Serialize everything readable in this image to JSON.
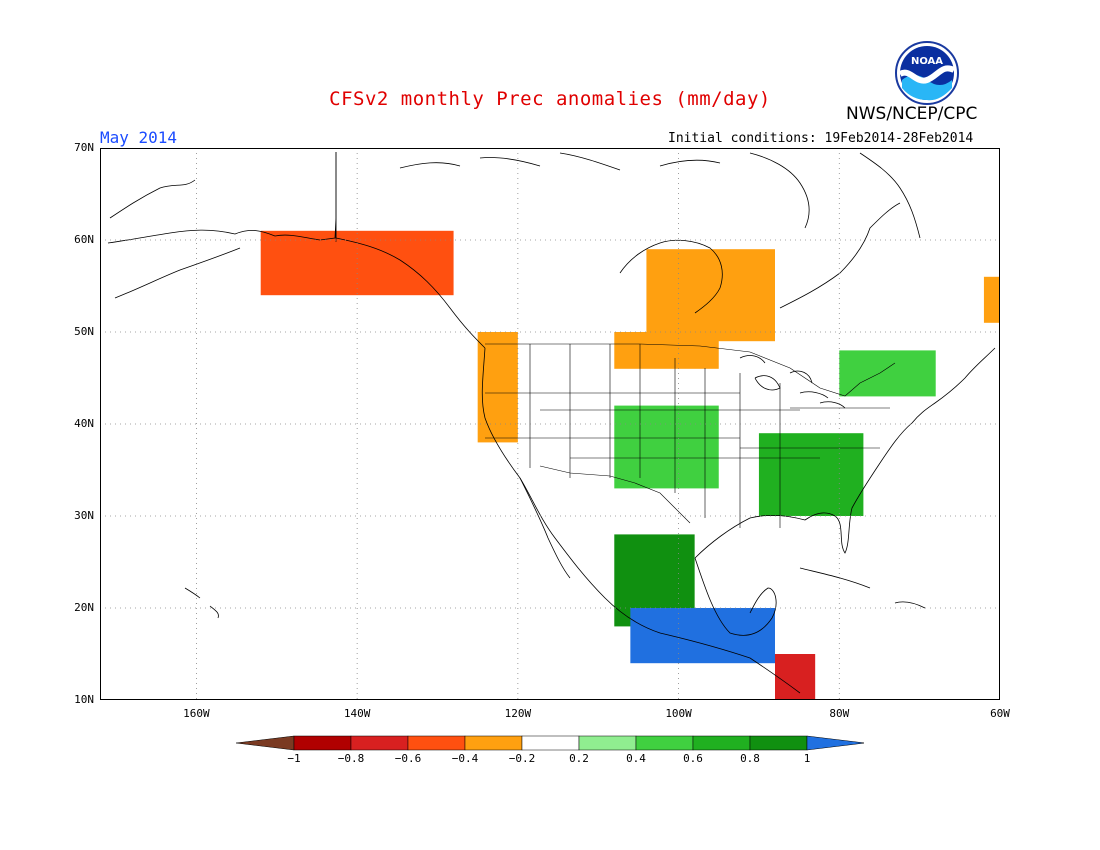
{
  "header": {
    "title": "CFSv2 monthly Prec anomalies (mm/day)",
    "period": "May 2014",
    "initial_conditions": "Initial conditions: 19Feb2014-28Feb2014",
    "agency": "NWS/NCEP/CPC",
    "logo_text": "NOAA"
  },
  "map": {
    "lat_labels": [
      "70N",
      "60N",
      "50N",
      "40N",
      "30N",
      "20N",
      "10N"
    ],
    "lon_labels": [
      "160W",
      "140W",
      "120W",
      "100W",
      "80W",
      "60W"
    ],
    "extent": {
      "lon": [
        -172,
        -60
      ],
      "lat": [
        10,
        70
      ]
    },
    "grid": "dotted every 20° lon / 10° lat"
  },
  "colorbar": {
    "labels": [
      "-1",
      "-0.8",
      "-0.6",
      "-0.4",
      "-0.2",
      "0.2",
      "0.4",
      "0.6",
      "0.8",
      "1"
    ],
    "colors": [
      "#7a3a22",
      "#b00000",
      "#d82020",
      "#ff5010",
      "#ffa010",
      "#ffffff",
      "#90ee90",
      "#40d040",
      "#20b020",
      "#109010",
      "#2070e0"
    ]
  },
  "anomaly_regions": [
    {
      "region": "central Canada (Manitoba/Ontario)",
      "lon": [
        -104,
        -88
      ],
      "lat": [
        49,
        59
      ],
      "level": "-0.4"
    },
    {
      "region": "northern Great Plains",
      "lon": [
        -108,
        -95
      ],
      "lat": [
        46,
        50
      ],
      "level": "-0.4"
    },
    {
      "region": "Pacific Northwest coast",
      "lon": [
        -125,
        -120
      ],
      "lat": [
        38,
        50
      ],
      "level": "-0.4"
    },
    {
      "region": "southern Alaska coast",
      "lon": [
        -152,
        -128
      ],
      "lat": [
        54,
        61
      ],
      "level": "-0.6"
    },
    {
      "region": "Labrador / Newfoundland",
      "lon": [
        -62,
        -60
      ],
      "lat": [
        51,
        56
      ],
      "level": "-0.4"
    },
    {
      "region": "central Plains",
      "lon": [
        -108,
        -95
      ],
      "lat": [
        33,
        42
      ],
      "level": "0.4"
    },
    {
      "region": "Southeast US / Carolinas",
      "lon": [
        -90,
        -77
      ],
      "lat": [
        30,
        39
      ],
      "level": "0.6"
    },
    {
      "region": "Great Lakes / New England",
      "lon": [
        -80,
        -68
      ],
      "lat": [
        43,
        48
      ],
      "level": "0.4"
    },
    {
      "region": "western Mexico",
      "lon": [
        -108,
        -98
      ],
      "lat": [
        18,
        28
      ],
      "level": "0.8"
    },
    {
      "region": "southern Mexico",
      "lon": [
        -106,
        -88
      ],
      "lat": [
        14,
        20
      ],
      "level": "1"
    },
    {
      "region": "Central America (Honduras/Nicaragua)",
      "lon": [
        -88,
        -83
      ],
      "lat": [
        10,
        15
      ],
      "level": "-0.8"
    }
  ]
}
